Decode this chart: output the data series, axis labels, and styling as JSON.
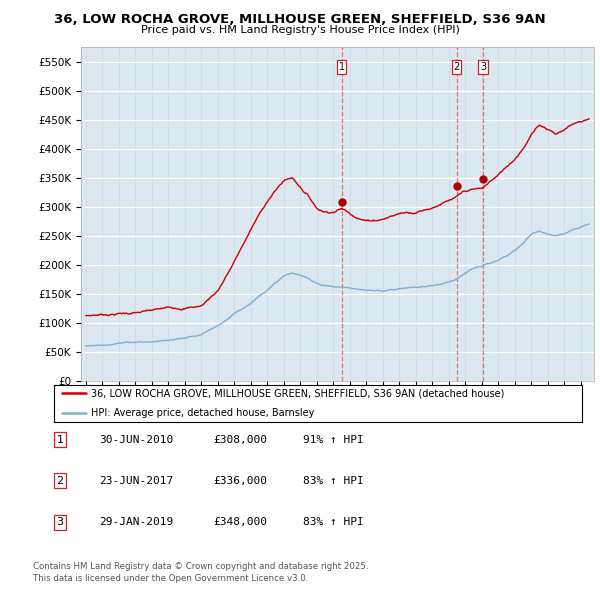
{
  "title_line1": "36, LOW ROCHA GROVE, MILLHOUSE GREEN, SHEFFIELD, S36 9AN",
  "title_line2": "Price paid vs. HM Land Registry's House Price Index (HPI)",
  "bg_color": "#ffffff",
  "plot_bg_color": "#dce8f0",
  "yticks": [
    0,
    50000,
    100000,
    150000,
    200000,
    250000,
    300000,
    350000,
    400000,
    450000,
    500000,
    550000
  ],
  "ytick_labels": [
    "£0",
    "£50K",
    "£100K",
    "£150K",
    "£200K",
    "£250K",
    "£300K",
    "£350K",
    "£400K",
    "£450K",
    "£500K",
    "£550K"
  ],
  "xmin": 1994.7,
  "xmax": 2025.8,
  "ymin": 0,
  "ymax": 575000,
  "sale_dates": [
    2010.5,
    2017.47,
    2019.08
  ],
  "sale_prices": [
    308000,
    336000,
    348000
  ],
  "sale_labels": [
    "1",
    "2",
    "3"
  ],
  "vline_color": "#e06060",
  "red_line_color": "#cc0000",
  "blue_line_color": "#7ab0d4",
  "marker_color": "#aa0000",
  "legend_label_red": "36, LOW ROCHA GROVE, MILLHOUSE GREEN, SHEFFIELD, S36 9AN (detached house)",
  "legend_label_blue": "HPI: Average price, detached house, Barnsley",
  "table_entries": [
    [
      "1",
      "30-JUN-2010",
      "£308,000",
      "91% ↑ HPI"
    ],
    [
      "2",
      "23-JUN-2017",
      "£336,000",
      "83% ↑ HPI"
    ],
    [
      "3",
      "29-JAN-2019",
      "£348,000",
      "83% ↑ HPI"
    ]
  ],
  "footnote": "Contains HM Land Registry data © Crown copyright and database right 2025.\nThis data is licensed under the Open Government Licence v3.0.",
  "red_keypoints_x": [
    1995.0,
    1996.0,
    1997.0,
    1998.0,
    1999.0,
    2000.0,
    2001.0,
    2002.0,
    2003.0,
    2004.0,
    2005.0,
    2006.0,
    2007.0,
    2007.5,
    2008.0,
    2008.5,
    2009.0,
    2009.5,
    2010.0,
    2010.5,
    2011.0,
    2011.5,
    2012.0,
    2012.5,
    2013.0,
    2013.5,
    2014.0,
    2014.5,
    2015.0,
    2015.5,
    2016.0,
    2016.5,
    2017.0,
    2017.47,
    2017.8,
    2018.0,
    2018.5,
    2019.08,
    2019.5,
    2020.0,
    2020.5,
    2021.0,
    2021.5,
    2022.0,
    2022.5,
    2023.0,
    2023.5,
    2024.0,
    2024.5,
    2025.0,
    2025.5
  ],
  "red_keypoints_y": [
    112000,
    115000,
    118000,
    120000,
    122000,
    125000,
    128000,
    132000,
    160000,
    210000,
    265000,
    315000,
    350000,
    355000,
    340000,
    325000,
    305000,
    300000,
    302000,
    308000,
    300000,
    295000,
    290000,
    292000,
    295000,
    300000,
    305000,
    308000,
    310000,
    315000,
    320000,
    328000,
    332000,
    336000,
    342000,
    345000,
    347000,
    348000,
    360000,
    370000,
    385000,
    400000,
    420000,
    445000,
    460000,
    455000,
    448000,
    455000,
    465000,
    470000,
    475000
  ],
  "blue_keypoints_x": [
    1995.0,
    1996.0,
    1997.0,
    1998.0,
    1999.0,
    2000.0,
    2001.0,
    2002.0,
    2003.0,
    2004.0,
    2005.0,
    2006.0,
    2007.0,
    2007.5,
    2008.0,
    2008.5,
    2009.0,
    2009.5,
    2010.0,
    2011.0,
    2012.0,
    2013.0,
    2014.0,
    2015.0,
    2016.0,
    2016.5,
    2017.0,
    2017.5,
    2018.0,
    2018.5,
    2019.0,
    2019.5,
    2020.0,
    2020.5,
    2021.0,
    2021.5,
    2022.0,
    2022.5,
    2023.0,
    2023.5,
    2024.0,
    2024.5,
    2025.0,
    2025.5
  ],
  "blue_keypoints_y": [
    60000,
    62000,
    65000,
    67000,
    68000,
    70000,
    72000,
    76000,
    90000,
    110000,
    130000,
    155000,
    178000,
    183000,
    178000,
    172000,
    165000,
    162000,
    160000,
    158000,
    152000,
    150000,
    155000,
    158000,
    160000,
    163000,
    168000,
    175000,
    185000,
    192000,
    195000,
    200000,
    205000,
    210000,
    220000,
    232000,
    248000,
    255000,
    250000,
    248000,
    252000,
    258000,
    262000,
    268000
  ]
}
